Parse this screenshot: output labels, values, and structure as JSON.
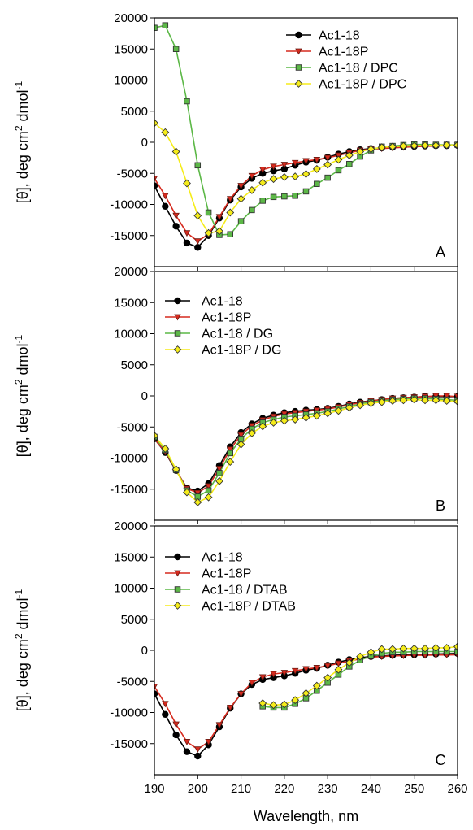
{
  "figure": {
    "xlabel": "Wavelength, nm",
    "ylabel_main": "[θ], deg cm",
    "ylabel_sup2": "2",
    "ylabel_mid": " dmol",
    "ylabel_supneg": "-1"
  },
  "colors": {
    "black": "#000000",
    "red": "#d62a1e",
    "green": "#5cb847",
    "yellow": "#f5ec1a"
  },
  "chart_data": [
    {
      "type": "line",
      "panel_label": "A",
      "xlim": [
        190,
        260
      ],
      "ylim": [
        -20000,
        20000
      ],
      "y_ticks": [
        -15000,
        -10000,
        -5000,
        0,
        5000,
        10000,
        15000,
        20000
      ],
      "y_tick_labels": [
        "-15000",
        "-10000",
        "-5000",
        "0",
        "5000",
        "10000",
        "15000",
        "20000"
      ],
      "legend_position": "top-right",
      "series": [
        {
          "name": "Ac1-18",
          "color": "#000000",
          "fill": "#000000",
          "marker": "circle",
          "x": [
            190,
            192.5,
            195,
            197.5,
            200,
            202.5,
            205,
            207.5,
            210,
            212.5,
            215,
            217.5,
            220,
            222.5,
            225,
            227.5,
            230,
            232.5,
            235,
            237.5,
            240,
            242.5,
            245,
            247.5,
            250,
            252.5,
            255,
            257.5,
            260
          ],
          "y": [
            -7000,
            -10300,
            -13500,
            -16200,
            -16900,
            -15000,
            -12200,
            -9300,
            -7200,
            -5800,
            -5000,
            -4600,
            -4300,
            -3700,
            -3200,
            -2900,
            -2400,
            -1900,
            -1500,
            -1200,
            -1000,
            -900,
            -800,
            -700,
            -650,
            -600,
            -550,
            -550,
            -500
          ]
        },
        {
          "name": "Ac1-18P",
          "color": "#d62a1e",
          "fill": "#d62a1e",
          "marker": "triangle-down",
          "x": [
            190,
            192.5,
            195,
            197.5,
            200,
            202.5,
            205,
            207.5,
            210,
            212.5,
            215,
            217.5,
            220,
            222.5,
            225,
            227.5,
            230,
            232.5,
            235,
            237.5,
            240,
            242.5,
            245,
            247.5,
            250,
            252.5,
            255,
            257.5,
            260
          ],
          "y": [
            -5800,
            -8600,
            -11800,
            -14600,
            -15900,
            -14800,
            -12000,
            -9100,
            -7000,
            -5400,
            -4400,
            -3900,
            -3600,
            -3300,
            -3000,
            -2800,
            -2500,
            -2100,
            -1700,
            -1300,
            -1100,
            -1000,
            -900,
            -800,
            -700,
            -650,
            -600,
            -550,
            -500
          ]
        },
        {
          "name": "Ac1-18 / DPC",
          "color": "#5cb847",
          "fill": "#5cb847",
          "marker": "square",
          "x": [
            190,
            192.5,
            195,
            197.5,
            200,
            202.5,
            205,
            207.5,
            210,
            212.5,
            215,
            217.5,
            220,
            222.5,
            225,
            227.5,
            230,
            232.5,
            235,
            237.5,
            240,
            242.5,
            245,
            247.5,
            250,
            252.5,
            255,
            257.5,
            260
          ],
          "y": [
            18400,
            18800,
            15000,
            6600,
            -3700,
            -11300,
            -14900,
            -14800,
            -12700,
            -10900,
            -9400,
            -8800,
            -8700,
            -8600,
            -7900,
            -6700,
            -5700,
            -4500,
            -3500,
            -2300,
            -1300,
            -700,
            -600,
            -450,
            -350,
            -350,
            -400,
            -400,
            -400
          ]
        },
        {
          "name": "Ac1-18P / DPC",
          "color": "#f5ec1a",
          "fill": "#f5ec1a",
          "marker": "diamond",
          "x": [
            190,
            192.5,
            195,
            197.5,
            200,
            202.5,
            205,
            207.5,
            210,
            212.5,
            215,
            217.5,
            220,
            222.5,
            225,
            227.5,
            230,
            232.5,
            235,
            237.5,
            240,
            242.5,
            245,
            247.5,
            250,
            252.5,
            255,
            257.5,
            260
          ],
          "y": [
            3100,
            1600,
            -1500,
            -6600,
            -11800,
            -14600,
            -14300,
            -11300,
            -9100,
            -7700,
            -6500,
            -5900,
            -5600,
            -5500,
            -5100,
            -4300,
            -3600,
            -2800,
            -2100,
            -1500,
            -1100,
            -800,
            -700,
            -600,
            -550,
            -500,
            -500,
            -450,
            -450
          ]
        }
      ]
    },
    {
      "type": "line",
      "panel_label": "B",
      "xlim": [
        190,
        260
      ],
      "ylim": [
        -20000,
        20000
      ],
      "y_ticks": [
        -15000,
        -10000,
        -5000,
        0,
        5000,
        10000,
        15000,
        20000
      ],
      "y_tick_labels": [
        "-15000",
        "-10000",
        "-5000",
        "0",
        "5000",
        "10000",
        "15000",
        "20000"
      ],
      "legend_position": "top-left",
      "series": [
        {
          "name": "Ac1-18",
          "color": "#000000",
          "fill": "#000000",
          "marker": "circle",
          "x": [
            190,
            192.5,
            195,
            197.5,
            200,
            202.5,
            205,
            207.5,
            210,
            212.5,
            215,
            217.5,
            220,
            222.5,
            225,
            227.5,
            230,
            232.5,
            235,
            237.5,
            240,
            242.5,
            245,
            247.5,
            250,
            252.5,
            255,
            257.5,
            260
          ],
          "y": [
            -6900,
            -9100,
            -12000,
            -14800,
            -15300,
            -14100,
            -11200,
            -8200,
            -5900,
            -4500,
            -3600,
            -3100,
            -2700,
            -2500,
            -2300,
            -2200,
            -2000,
            -1700,
            -1300,
            -1000,
            -800,
            -600,
            -400,
            -300,
            -200,
            -100,
            -100,
            -100,
            -100
          ]
        },
        {
          "name": "Ac1-18P",
          "color": "#d62a1e",
          "fill": "#d62a1e",
          "marker": "triangle-down",
          "x": [
            190,
            192.5,
            195,
            197.5,
            200,
            202.5,
            205,
            207.5,
            210,
            212.5,
            215,
            217.5,
            220,
            222.5,
            225,
            227.5,
            230,
            232.5,
            235,
            237.5,
            240,
            242.5,
            245,
            247.5,
            250,
            252.5,
            255,
            257.5,
            260
          ],
          "y": [
            -6900,
            -9000,
            -11900,
            -14900,
            -15600,
            -14500,
            -11700,
            -8600,
            -6300,
            -4800,
            -3900,
            -3300,
            -2900,
            -2700,
            -2500,
            -2300,
            -2100,
            -1800,
            -1400,
            -1100,
            -800,
            -600,
            -400,
            -300,
            -200,
            -100,
            0,
            0,
            -100
          ]
        },
        {
          "name": "Ac1-18 / DG",
          "color": "#5cb847",
          "fill": "#5cb847",
          "marker": "square",
          "x": [
            190,
            192.5,
            195,
            197.5,
            200,
            202.5,
            205,
            207.5,
            210,
            212.5,
            215,
            217.5,
            220,
            222.5,
            225,
            227.5,
            230,
            232.5,
            235,
            237.5,
            240,
            242.5,
            245,
            247.5,
            250,
            252.5,
            255,
            257.5,
            260
          ],
          "y": [
            -6600,
            -8700,
            -11900,
            -15200,
            -16200,
            -15200,
            -12400,
            -9200,
            -6900,
            -5300,
            -4300,
            -3800,
            -3400,
            -3200,
            -3000,
            -2800,
            -2500,
            -2100,
            -1700,
            -1300,
            -1000,
            -800,
            -600,
            -500,
            -400,
            -400,
            -500,
            -600,
            -700
          ]
        },
        {
          "name": "Ac1-18P / DG",
          "color": "#f5ec1a",
          "fill": "#f5ec1a",
          "marker": "diamond",
          "x": [
            190,
            192.5,
            195,
            197.5,
            200,
            202.5,
            205,
            207.5,
            210,
            212.5,
            215,
            217.5,
            220,
            222.5,
            225,
            227.5,
            230,
            232.5,
            235,
            237.5,
            240,
            242.5,
            245,
            247.5,
            250,
            252.5,
            255,
            257.5,
            260
          ],
          "y": [
            -6400,
            -8500,
            -11800,
            -15500,
            -17100,
            -16300,
            -13700,
            -10600,
            -7800,
            -6000,
            -4900,
            -4300,
            -4000,
            -3800,
            -3500,
            -3200,
            -2800,
            -2400,
            -1900,
            -1500,
            -1200,
            -1000,
            -800,
            -700,
            -600,
            -700,
            -700,
            -800,
            -900
          ]
        }
      ]
    },
    {
      "type": "line",
      "panel_label": "C",
      "xlim": [
        190,
        260
      ],
      "ylim": [
        -20000,
        20000
      ],
      "y_ticks": [
        -15000,
        -10000,
        -5000,
        0,
        5000,
        10000,
        15000,
        20000
      ],
      "y_tick_labels": [
        "-15000",
        "-10000",
        "-5000",
        "0",
        "5000",
        "10000",
        "15000",
        "20000"
      ],
      "x_ticks": [
        190,
        200,
        210,
        220,
        230,
        240,
        250,
        260
      ],
      "x_tick_labels": [
        "190",
        "200",
        "210",
        "220",
        "230",
        "240",
        "250",
        "260"
      ],
      "legend_position": "top-left",
      "series": [
        {
          "name": "Ac1-18",
          "color": "#000000",
          "fill": "#000000",
          "marker": "circle",
          "x": [
            190,
            192.5,
            195,
            197.5,
            200,
            202.5,
            205,
            207.5,
            210,
            212.5,
            215,
            217.5,
            220,
            222.5,
            225,
            227.5,
            230,
            232.5,
            235,
            237.5,
            240,
            242.5,
            245,
            247.5,
            250,
            252.5,
            255,
            257.5,
            260
          ],
          "y": [
            -7000,
            -10300,
            -13600,
            -16300,
            -17000,
            -15200,
            -12300,
            -9300,
            -7000,
            -5500,
            -4700,
            -4400,
            -4100,
            -3700,
            -3200,
            -2900,
            -2400,
            -1900,
            -1500,
            -1200,
            -1000,
            -900,
            -800,
            -750,
            -700,
            -650,
            -600,
            -550,
            -500
          ]
        },
        {
          "name": "Ac1-18P",
          "color": "#d62a1e",
          "fill": "#d62a1e",
          "marker": "triangle-down",
          "x": [
            190,
            192.5,
            195,
            197.5,
            200,
            202.5,
            205,
            207.5,
            210,
            212.5,
            215,
            217.5,
            220,
            222.5,
            225,
            227.5,
            230,
            232.5,
            235,
            237.5,
            240,
            242.5,
            245,
            247.5,
            250,
            252.5,
            255,
            257.5,
            260
          ],
          "y": [
            -5800,
            -8600,
            -11900,
            -14700,
            -15900,
            -14700,
            -12000,
            -9200,
            -7000,
            -5200,
            -4300,
            -3800,
            -3600,
            -3300,
            -3000,
            -2800,
            -2500,
            -2100,
            -1700,
            -1400,
            -1100,
            -1000,
            -900,
            -850,
            -800,
            -800,
            -750,
            -750,
            -700
          ]
        },
        {
          "name": "Ac1-18 / DTAB",
          "color": "#5cb847",
          "fill": "#5cb847",
          "marker": "square",
          "x": [
            215,
            217.5,
            220,
            222.5,
            225,
            227.5,
            230,
            232.5,
            235,
            237.5,
            240,
            242.5,
            245,
            247.5,
            250,
            252.5,
            255,
            257.5,
            260
          ],
          "y": [
            -9000,
            -9200,
            -9200,
            -8600,
            -7700,
            -6500,
            -5200,
            -3900,
            -2600,
            -1600,
            -900,
            -500,
            -300,
            -300,
            -200,
            -200,
            -200,
            -200,
            -200
          ]
        },
        {
          "name": "Ac1-18P / DTAB",
          "color": "#f5ec1a",
          "fill": "#f5ec1a",
          "marker": "diamond",
          "x": [
            215,
            217.5,
            220,
            222.5,
            225,
            227.5,
            230,
            232.5,
            235,
            237.5,
            240,
            242.5,
            245,
            247.5,
            250,
            252.5,
            255,
            257.5,
            260
          ],
          "y": [
            -8500,
            -8800,
            -8700,
            -8000,
            -6900,
            -5700,
            -4400,
            -3100,
            -2000,
            -1000,
            -300,
            200,
            200,
            300,
            300,
            300,
            400,
            400,
            600
          ]
        }
      ]
    }
  ]
}
